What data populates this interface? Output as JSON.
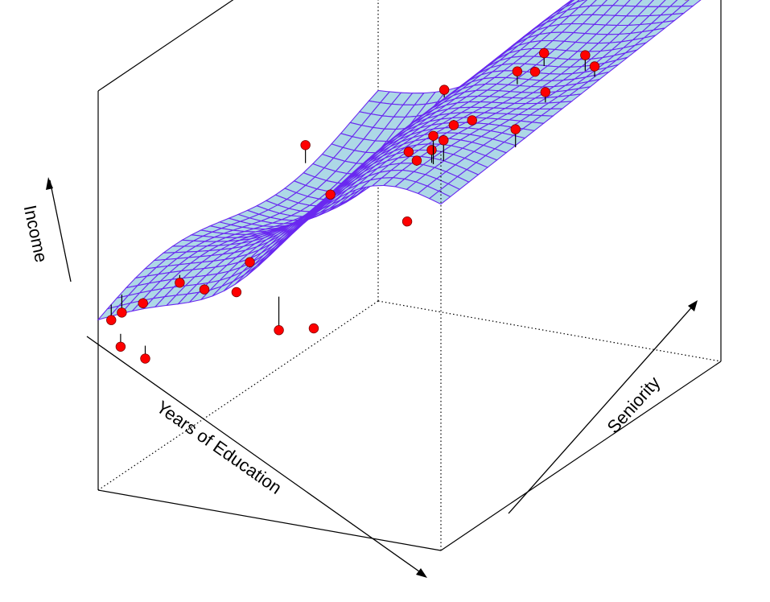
{
  "chart_data": {
    "type": "surface3d",
    "xlabel": "Years of Education",
    "ylabel": "Seniority",
    "zlabel": "Income",
    "surface_fill": "#add8e6",
    "mesh_color": "#6a28f0",
    "point_color": "#ff0000",
    "residual_color": "#000000",
    "box_color": "#000000",
    "points": [
      {
        "x": 0.02,
        "y": 0.06,
        "z": 0.1,
        "fz": 0.17
      },
      {
        "x": 0.03,
        "y": 0.01,
        "z": 0.11,
        "fz": 0.17
      },
      {
        "x": 0.09,
        "y": 0.05,
        "z": 0.16,
        "fz": 0.18
      },
      {
        "x": 0.14,
        "y": 0.12,
        "z": 0.2,
        "fz": 0.23
      },
      {
        "x": 0.22,
        "y": 0.11,
        "z": 0.2,
        "fz": 0.22
      },
      {
        "x": 0.09,
        "y": -0.03,
        "z": 0.05,
        "fz": 0.1
      },
      {
        "x": 0.17,
        "y": -0.04,
        "z": 0.03,
        "fz": 0.08
      },
      {
        "x": 0.32,
        "y": 0.15,
        "z": 0.3,
        "fz": 0.28
      },
      {
        "x": 0.33,
        "y": 0.09,
        "z": 0.23,
        "fz": 0.23
      },
      {
        "x": 0.47,
        "y": 0.07,
        "z": 0.13,
        "fz": 0.26
      },
      {
        "x": 0.58,
        "y": 0.06,
        "z": 0.17,
        "fz": 0.18
      },
      {
        "x": 0.18,
        "y": 0.52,
        "z": 0.45,
        "fz": 0.38
      },
      {
        "x": 0.31,
        "y": 0.45,
        "z": 0.34,
        "fz": 0.34
      },
      {
        "x": 0.25,
        "y": 0.93,
        "z": 0.38,
        "fz": 0.35
      },
      {
        "x": 0.49,
        "y": 0.67,
        "z": 0.49,
        "fz": 0.51
      },
      {
        "x": 0.56,
        "y": 0.65,
        "z": 0.54,
        "fz": 0.53
      },
      {
        "x": 0.53,
        "y": 0.46,
        "z": 0.55,
        "fz": 0.54
      },
      {
        "x": 0.57,
        "y": 0.44,
        "z": 0.54,
        "fz": 0.52
      },
      {
        "x": 0.63,
        "y": 0.42,
        "z": 0.61,
        "fz": 0.56
      },
      {
        "x": 0.7,
        "y": 0.34,
        "z": 0.74,
        "fz": 0.63
      },
      {
        "x": 0.73,
        "y": 0.34,
        "z": 0.73,
        "fz": 0.65
      },
      {
        "x": 0.73,
        "y": 0.21,
        "z": 0.51,
        "fz": 0.51
      },
      {
        "x": 0.7,
        "y": 0.64,
        "z": 0.77,
        "fz": 0.72
      },
      {
        "x": 0.76,
        "y": 0.63,
        "z": 0.79,
        "fz": 0.78
      },
      {
        "x": 0.77,
        "y": 0.65,
        "z": 0.85,
        "fz": 0.8
      },
      {
        "x": 0.88,
        "y": 0.52,
        "z": 0.82,
        "fz": 0.78
      },
      {
        "x": 0.89,
        "y": 0.65,
        "z": 0.87,
        "fz": 0.81
      },
      {
        "x": 0.95,
        "y": 0.61,
        "z": 0.87,
        "fz": 0.83
      },
      {
        "x": 0.85,
        "y": 0.45,
        "z": 0.72,
        "fz": 0.65
      },
      {
        "x": 0.98,
        "y": 0.9,
        "z": 0.94,
        "fz": 0.95
      }
    ]
  }
}
